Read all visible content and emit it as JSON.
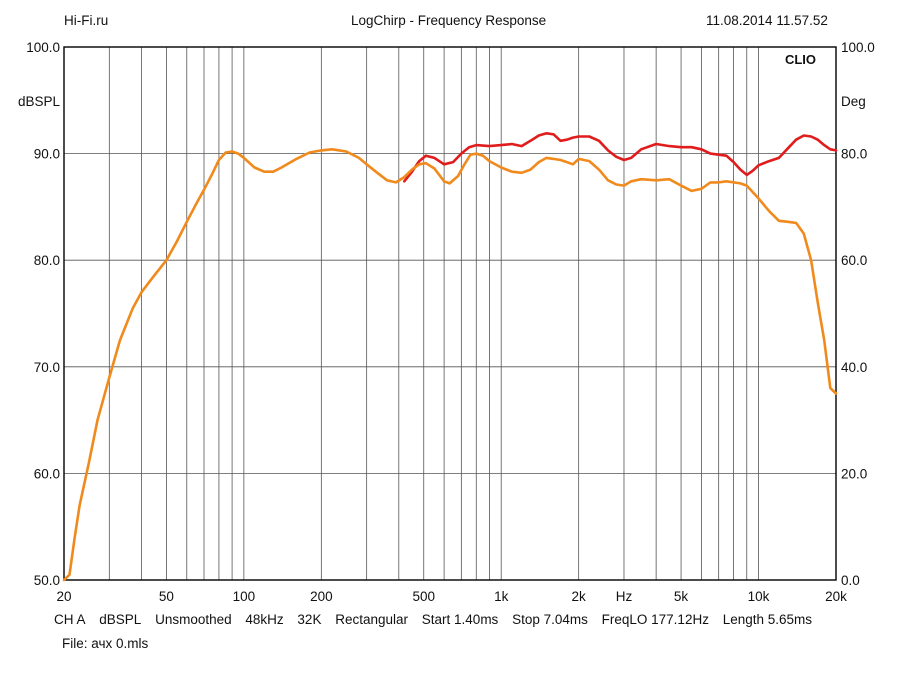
{
  "header": {
    "left": "Hi-Fi.ru",
    "center": "LogChirp - Frequency Response",
    "right": "11.08.2014 11.57.52"
  },
  "chart_data": {
    "type": "line",
    "title": "LogChirp - Frequency Response",
    "brand": "CLIO",
    "ylabel": "dBSPL",
    "ylabel_right": "Deg",
    "xlabel": "Hz",
    "xscale": "log",
    "xlim": [
      20,
      20000
    ],
    "ylim": [
      50,
      100
    ],
    "ylim_right": [
      0,
      100
    ],
    "y_ticks": [
      "50.0",
      "60.0",
      "70.0",
      "80.0",
      "90.0",
      "100.0"
    ],
    "y_ticks_right": [
      "0.0",
      "20.0",
      "40.0",
      "60.0",
      "80.0",
      "100.0"
    ],
    "x_ticks": [
      {
        "v": 20,
        "label": "20"
      },
      {
        "v": 50,
        "label": "50"
      },
      {
        "v": 100,
        "label": "100"
      },
      {
        "v": 200,
        "label": "200"
      },
      {
        "v": 500,
        "label": "500"
      },
      {
        "v": 1000,
        "label": "1k"
      },
      {
        "v": 2000,
        "label": "2k"
      },
      {
        "v": 5000,
        "label": "5k"
      },
      {
        "v": 10000,
        "label": "10k"
      },
      {
        "v": 20000,
        "label": "20k"
      }
    ],
    "x_unit_tick": {
      "v": 3000,
      "label": "Hz"
    },
    "grid": true,
    "series": [
      {
        "name": "red",
        "color": "#e01c1c",
        "points": [
          [
            420,
            87.4
          ],
          [
            450,
            88.3
          ],
          [
            480,
            89.3
          ],
          [
            510,
            89.8
          ],
          [
            550,
            89.6
          ],
          [
            600,
            89.0
          ],
          [
            650,
            89.2
          ],
          [
            700,
            90.0
          ],
          [
            750,
            90.6
          ],
          [
            800,
            90.8
          ],
          [
            900,
            90.7
          ],
          [
            1000,
            90.8
          ],
          [
            1100,
            90.9
          ],
          [
            1200,
            90.7
          ],
          [
            1300,
            91.2
          ],
          [
            1400,
            91.7
          ],
          [
            1500,
            91.9
          ],
          [
            1600,
            91.8
          ],
          [
            1700,
            91.2
          ],
          [
            1800,
            91.3
          ],
          [
            1900,
            91.5
          ],
          [
            2000,
            91.6
          ],
          [
            2200,
            91.6
          ],
          [
            2400,
            91.2
          ],
          [
            2600,
            90.3
          ],
          [
            2800,
            89.7
          ],
          [
            3000,
            89.4
          ],
          [
            3200,
            89.6
          ],
          [
            3500,
            90.4
          ],
          [
            4000,
            90.9
          ],
          [
            4500,
            90.7
          ],
          [
            5000,
            90.6
          ],
          [
            5500,
            90.6
          ],
          [
            6000,
            90.4
          ],
          [
            6500,
            90.0
          ],
          [
            7000,
            89.9
          ],
          [
            7500,
            89.8
          ],
          [
            8000,
            89.2
          ],
          [
            8500,
            88.5
          ],
          [
            9000,
            88.0
          ],
          [
            9500,
            88.4
          ],
          [
            10000,
            88.9
          ],
          [
            11000,
            89.3
          ],
          [
            12000,
            89.6
          ],
          [
            13000,
            90.5
          ],
          [
            14000,
            91.3
          ],
          [
            15000,
            91.7
          ],
          [
            16000,
            91.6
          ],
          [
            17000,
            91.3
          ],
          [
            18000,
            90.8
          ],
          [
            19000,
            90.4
          ],
          [
            20000,
            90.3
          ]
        ]
      },
      {
        "name": "orange",
        "color": "#f08a1c",
        "points": [
          [
            20,
            48.0
          ],
          [
            21,
            50.5
          ],
          [
            22,
            54.0
          ],
          [
            23,
            57.0
          ],
          [
            25,
            61.0
          ],
          [
            27,
            65.0
          ],
          [
            30,
            69.0
          ],
          [
            33,
            72.5
          ],
          [
            37,
            75.5
          ],
          [
            40,
            77.0
          ],
          [
            45,
            78.6
          ],
          [
            50,
            80.0
          ],
          [
            55,
            81.8
          ],
          [
            60,
            83.6
          ],
          [
            65,
            85.2
          ],
          [
            70,
            86.6
          ],
          [
            75,
            88.0
          ],
          [
            80,
            89.4
          ],
          [
            85,
            90.1
          ],
          [
            90,
            90.2
          ],
          [
            95,
            90.0
          ],
          [
            100,
            89.6
          ],
          [
            110,
            88.7
          ],
          [
            120,
            88.3
          ],
          [
            130,
            88.3
          ],
          [
            140,
            88.7
          ],
          [
            160,
            89.5
          ],
          [
            180,
            90.1
          ],
          [
            200,
            90.3
          ],
          [
            220,
            90.4
          ],
          [
            250,
            90.2
          ],
          [
            280,
            89.6
          ],
          [
            300,
            89.0
          ],
          [
            330,
            88.2
          ],
          [
            360,
            87.5
          ],
          [
            390,
            87.3
          ],
          [
            420,
            87.8
          ],
          [
            450,
            88.5
          ],
          [
            480,
            89.0
          ],
          [
            510,
            89.1
          ],
          [
            550,
            88.6
          ],
          [
            600,
            87.4
          ],
          [
            630,
            87.2
          ],
          [
            680,
            87.9
          ],
          [
            720,
            89.0
          ],
          [
            760,
            89.9
          ],
          [
            800,
            90.0
          ],
          [
            850,
            89.8
          ],
          [
            900,
            89.3
          ],
          [
            1000,
            88.7
          ],
          [
            1100,
            88.3
          ],
          [
            1200,
            88.2
          ],
          [
            1300,
            88.5
          ],
          [
            1400,
            89.2
          ],
          [
            1500,
            89.6
          ],
          [
            1600,
            89.5
          ],
          [
            1700,
            89.4
          ],
          [
            1800,
            89.2
          ],
          [
            1900,
            89.0
          ],
          [
            2000,
            89.5
          ],
          [
            2200,
            89.3
          ],
          [
            2400,
            88.5
          ],
          [
            2600,
            87.5
          ],
          [
            2800,
            87.1
          ],
          [
            3000,
            87.0
          ],
          [
            3200,
            87.4
          ],
          [
            3500,
            87.6
          ],
          [
            4000,
            87.5
          ],
          [
            4500,
            87.6
          ],
          [
            5000,
            87.0
          ],
          [
            5500,
            86.5
          ],
          [
            6000,
            86.7
          ],
          [
            6500,
            87.3
          ],
          [
            7000,
            87.3
          ],
          [
            7500,
            87.4
          ],
          [
            8000,
            87.3
          ],
          [
            8500,
            87.2
          ],
          [
            9000,
            87.0
          ],
          [
            10000,
            85.8
          ],
          [
            11000,
            84.6
          ],
          [
            12000,
            83.7
          ],
          [
            13000,
            83.6
          ],
          [
            14000,
            83.5
          ],
          [
            15000,
            82.5
          ],
          [
            16000,
            80.0
          ],
          [
            17000,
            76.0
          ],
          [
            18000,
            72.5
          ],
          [
            19000,
            68.0
          ],
          [
            20000,
            67.5
          ]
        ]
      }
    ]
  },
  "footer": {
    "channel": "CH A",
    "unit": "dBSPL",
    "smoothing": "Unsmoothed",
    "sample_rate": "48kHz",
    "fft_size": "32K",
    "window": "Rectangular",
    "start": "Start 1.40ms",
    "stop": "Stop 7.04ms",
    "freq_lo": "FreqLO 177.12Hz",
    "length": "Length 5.65ms",
    "file": "File: ачх 0.mls"
  }
}
